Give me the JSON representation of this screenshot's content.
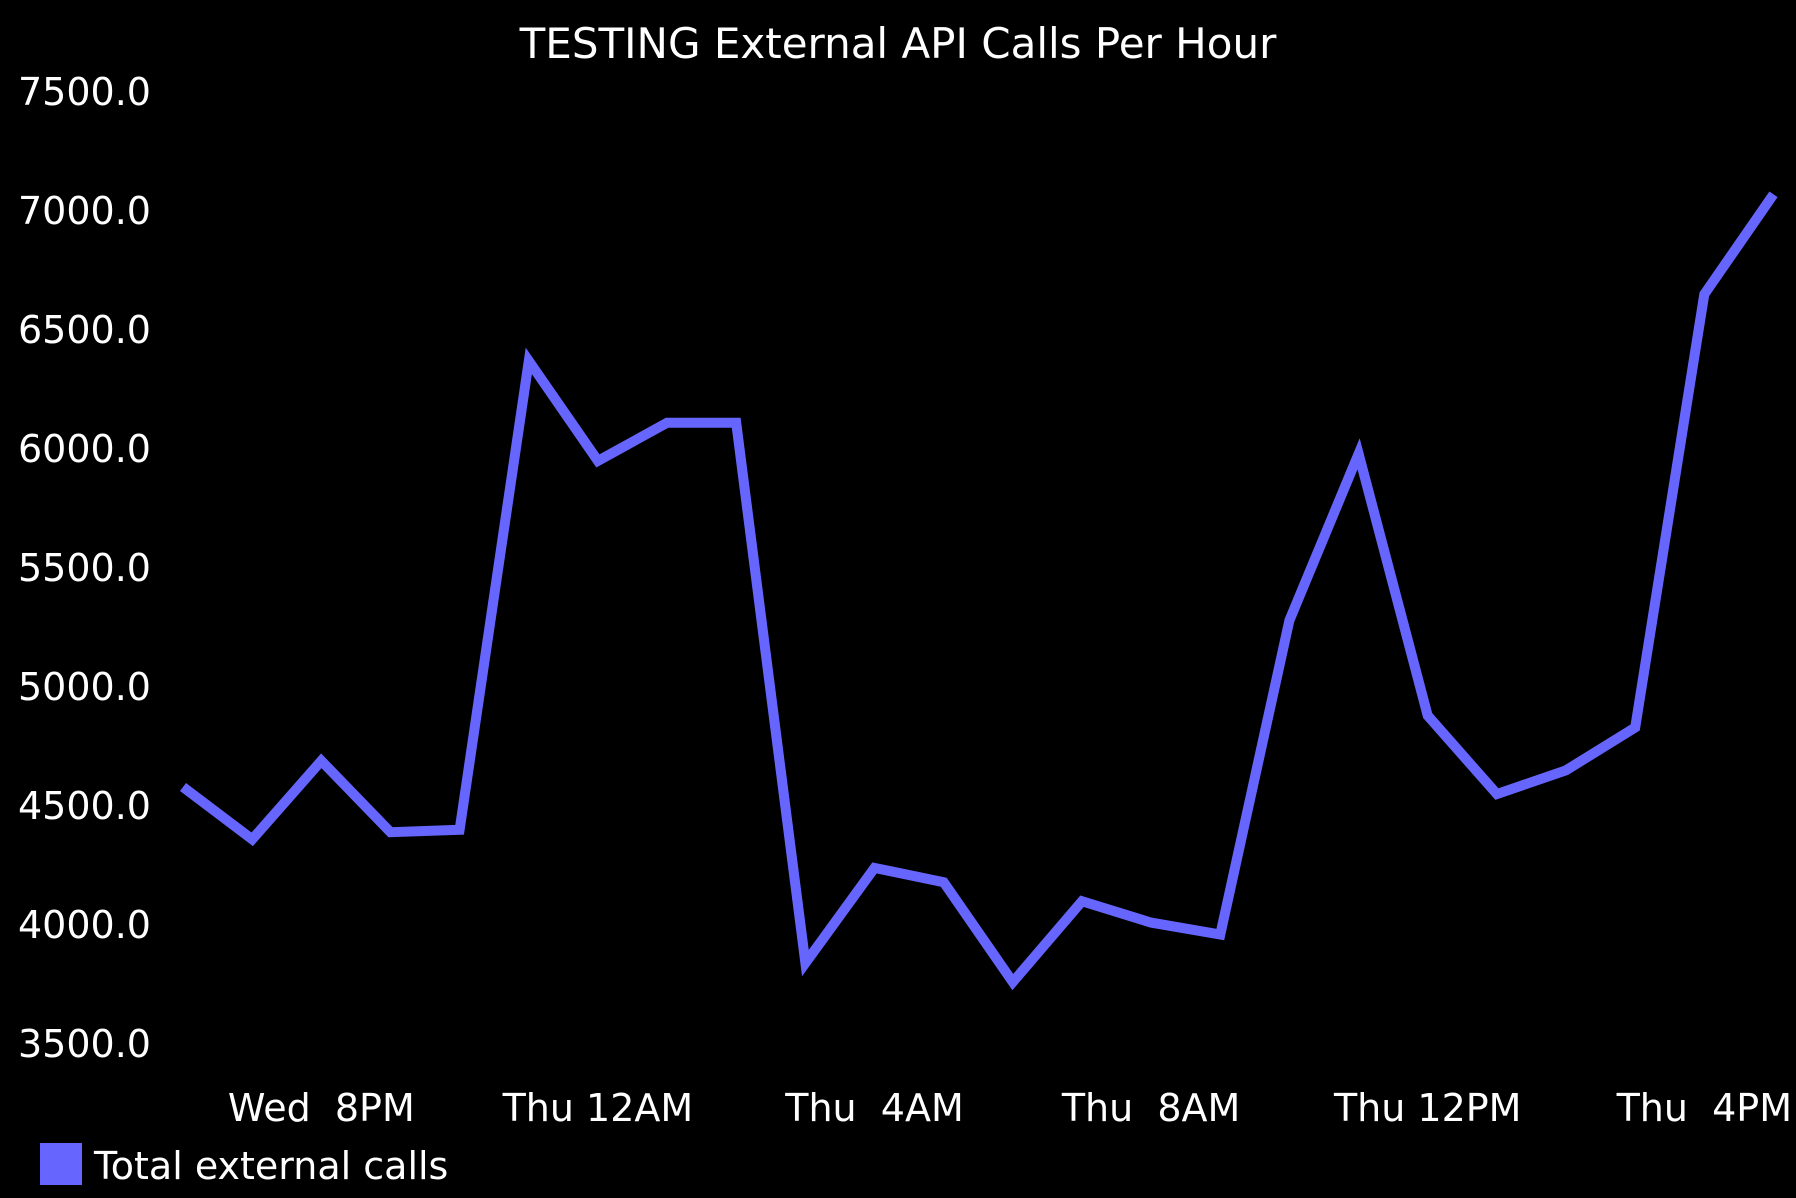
{
  "chart_data": {
    "type": "line",
    "title": "TESTING External API Calls Per Hour",
    "xlabel": "",
    "ylabel": "",
    "ylim": [
      3500,
      7500
    ],
    "y_ticks": [
      "7500.0",
      "7000.0",
      "6500.0",
      "6000.0",
      "5500.0",
      "5000.0",
      "4500.0",
      "4000.0",
      "3500.0"
    ],
    "x_ticks": [
      {
        "label": "Wed  8PM",
        "x": 20
      },
      {
        "label": "Thu 12AM",
        "x": 24
      },
      {
        "label": "Thu  4AM",
        "x": 28
      },
      {
        "label": "Thu  8AM",
        "x": 32
      },
      {
        "label": "Thu 12PM",
        "x": 36
      },
      {
        "label": "Thu  4PM",
        "x": 40
      }
    ],
    "x": [
      18,
      19,
      20,
      21,
      22,
      23,
      24,
      25,
      26,
      27,
      28,
      29,
      30,
      31,
      32,
      33,
      34,
      35,
      36,
      37,
      38,
      39,
      40,
      41
    ],
    "series": [
      {
        "name": "Total external calls",
        "color": "#6666ff",
        "values": [
          4580,
          4360,
          4690,
          4390,
          4400,
          6370,
          5950,
          6110,
          6110,
          3840,
          4240,
          4180,
          3760,
          4100,
          4010,
          3960,
          5280,
          5980,
          4880,
          4550,
          4650,
          4830,
          6650,
          7070
        ]
      }
    ],
    "grid": false,
    "legend": "bottom-left"
  }
}
